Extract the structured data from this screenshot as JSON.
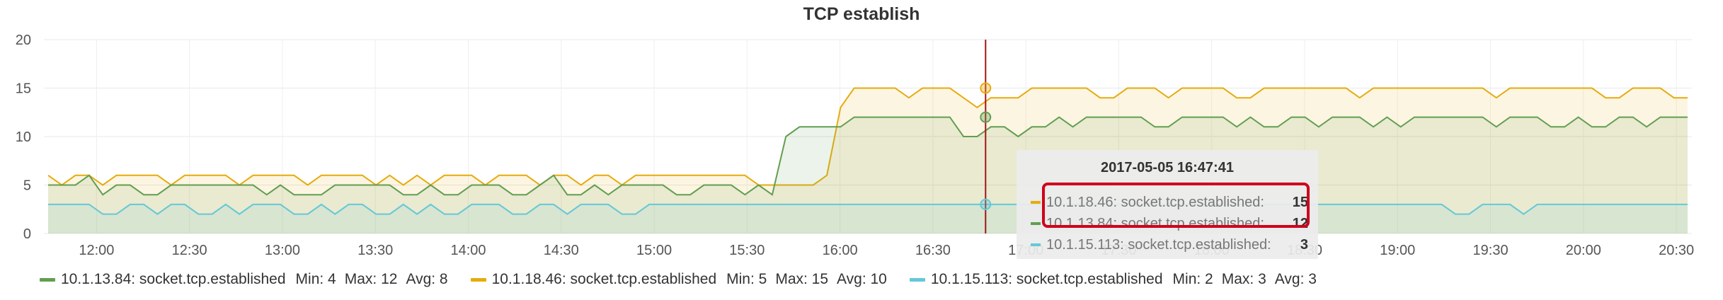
{
  "panel": {
    "title": "TCP establish"
  },
  "chart_data": {
    "type": "line",
    "title": "TCP establish",
    "ylim": [
      0,
      20
    ],
    "y_ticks": [
      "0",
      "5",
      "10",
      "15",
      "20"
    ],
    "x_tick_labels": [
      "12:00",
      "12:30",
      "13:00",
      "13:30",
      "14:00",
      "14:30",
      "15:00",
      "15:30",
      "16:00",
      "16:30",
      "17:00",
      "17:30",
      "18:00",
      "18:30",
      "19:00",
      "19:30",
      "20:00",
      "20:30"
    ],
    "x_start": "11:43",
    "x_end": "20:35",
    "grid": true,
    "legend": "bottom",
    "crosshair_time": "16:47",
    "series": [
      {
        "name": "10.1.13.84: socket.tcp.established",
        "color": "#629e51",
        "min": "4",
        "max": "12",
        "avg": "8",
        "values": [
          5,
          5,
          5,
          6,
          4,
          5,
          5,
          4,
          4,
          5,
          5,
          5,
          5,
          5,
          5,
          5,
          4,
          5,
          4,
          4,
          4,
          5,
          5,
          5,
          5,
          5,
          4,
          4,
          5,
          4,
          4,
          5,
          5,
          5,
          4,
          4,
          5,
          6,
          4,
          4,
          5,
          4,
          5,
          5,
          5,
          5,
          4,
          4,
          5,
          5,
          5,
          4,
          5,
          4,
          10,
          11,
          11,
          11,
          11,
          12,
          12,
          12,
          12,
          12,
          12,
          12,
          12,
          10,
          10,
          11,
          11,
          10,
          11,
          11,
          12,
          11,
          12,
          12,
          12,
          12,
          12,
          11,
          11,
          12,
          12,
          12,
          12,
          11,
          12,
          11,
          11,
          12,
          12,
          11,
          12,
          12,
          12,
          11,
          12,
          11,
          12,
          12,
          12,
          12,
          12,
          12,
          11,
          12,
          12,
          12,
          11,
          11,
          12,
          11,
          11,
          12,
          12,
          11,
          12,
          12,
          12
        ]
      },
      {
        "name": "10.1.18.46: socket.tcp.established",
        "color": "#e5ac0e",
        "min": "5",
        "max": "15",
        "avg": "10",
        "values": [
          6,
          5,
          6,
          6,
          5,
          6,
          6,
          6,
          6,
          5,
          6,
          6,
          6,
          6,
          5,
          6,
          6,
          6,
          6,
          5,
          6,
          6,
          6,
          6,
          5,
          6,
          5,
          6,
          5,
          6,
          6,
          6,
          5,
          6,
          6,
          6,
          5,
          6,
          6,
          5,
          6,
          6,
          5,
          6,
          6,
          6,
          6,
          6,
          6,
          6,
          6,
          6,
          5,
          5,
          5,
          5,
          5,
          6,
          13,
          15,
          15,
          15,
          15,
          14,
          15,
          15,
          15,
          14,
          13,
          14,
          14,
          14,
          15,
          15,
          15,
          15,
          15,
          14,
          14,
          15,
          15,
          15,
          14,
          15,
          15,
          15,
          15,
          14,
          14,
          15,
          15,
          15,
          15,
          15,
          15,
          15,
          14,
          15,
          15,
          15,
          15,
          15,
          15,
          15,
          15,
          15,
          14,
          15,
          15,
          15,
          15,
          15,
          15,
          15,
          14,
          14,
          15,
          15,
          15,
          14,
          14
        ]
      },
      {
        "name": "10.1.15.113: socket.tcp.established",
        "color": "#64c8d8",
        "min": "2",
        "max": "3",
        "avg": "3",
        "values": [
          3,
          3,
          3,
          3,
          2,
          2,
          3,
          3,
          2,
          3,
          3,
          2,
          2,
          3,
          2,
          3,
          3,
          3,
          2,
          2,
          3,
          2,
          3,
          3,
          2,
          2,
          3,
          2,
          3,
          2,
          2,
          3,
          3,
          3,
          2,
          2,
          3,
          3,
          2,
          3,
          3,
          3,
          2,
          2,
          3,
          3,
          3,
          3,
          3,
          3,
          3,
          3,
          3,
          3,
          3,
          3,
          3,
          3,
          3,
          3,
          3,
          3,
          3,
          3,
          3,
          3,
          3,
          3,
          3,
          3,
          3,
          3,
          3,
          3,
          3,
          3,
          3,
          3,
          3,
          3,
          3,
          3,
          3,
          3,
          3,
          3,
          3,
          3,
          3,
          3,
          3,
          3,
          3,
          3,
          3,
          3,
          3,
          3,
          3,
          3,
          3,
          3,
          3,
          2,
          2,
          3,
          3,
          3,
          2,
          3,
          3,
          3,
          3,
          3,
          3,
          3,
          3,
          3,
          3,
          3,
          3
        ]
      }
    ]
  },
  "legend": {
    "min_label": "Min:",
    "max_label": "Max:",
    "avg_label": "Avg:"
  },
  "tooltip": {
    "time": "2017-05-05 16:47:41",
    "rows": [
      {
        "name": "10.1.18.46: socket.tcp.established:",
        "value": "15",
        "color": "#e5ac0e"
      },
      {
        "name": "10.1.13.84: socket.tcp.established:",
        "value": "12",
        "color": "#629e51"
      },
      {
        "name": "10.1.15.113: socket.tcp.established:",
        "value": "3",
        "color": "#64c8d8"
      }
    ]
  }
}
